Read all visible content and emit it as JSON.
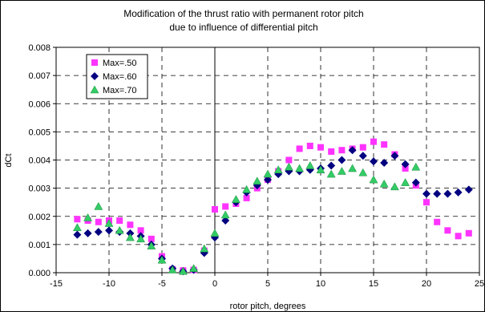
{
  "chart_data": {
    "type": "scatter",
    "title_lines": [
      "Modification of the thrust ratio with permanent rotor pitch",
      "due to influence of differential pitch"
    ],
    "xlabel": "rotor pitch, degrees",
    "ylabel": "dCt",
    "xlim": [
      -15,
      25
    ],
    "ylim": [
      0,
      0.008
    ],
    "x_ticks": [
      -15,
      -10,
      -5,
      0,
      5,
      10,
      15,
      20,
      25
    ],
    "y_ticks": [
      "0.000",
      "0.001",
      "0.002",
      "0.003",
      "0.004",
      "0.005",
      "0.006",
      "0.007",
      "0.008"
    ],
    "grid": "dashed",
    "legend_position": "top-left",
    "series": [
      {
        "name": "Max=.50",
        "marker": "square",
        "color": "#ff33ff",
        "points": [
          [
            -13,
            0.0019
          ],
          [
            -12,
            0.00185
          ],
          [
            -11,
            0.0018
          ],
          [
            -10,
            0.00185
          ],
          [
            -9,
            0.00185
          ],
          [
            -8,
            0.0017
          ],
          [
            -7,
            0.0015
          ],
          [
            -6,
            0.0012
          ],
          [
            -5,
            0.00058
          ],
          [
            -4,
            0.00012
          ],
          [
            -3,
            8e-05
          ],
          [
            -2,
            0.0001
          ],
          [
            -1,
            0.00078
          ],
          [
            0,
            0.00225
          ],
          [
            1,
            0.00235
          ],
          [
            2,
            0.00245
          ],
          [
            3,
            0.00265
          ],
          [
            4,
            0.003
          ],
          [
            5,
            0.0033
          ],
          [
            6,
            0.0036
          ],
          [
            7,
            0.004
          ],
          [
            8,
            0.0044
          ],
          [
            9,
            0.0045
          ],
          [
            10,
            0.00445
          ],
          [
            11,
            0.0043
          ],
          [
            12,
            0.00435
          ],
          [
            13,
            0.0044
          ],
          [
            14,
            0.00445
          ],
          [
            15,
            0.00465
          ],
          [
            16,
            0.00455
          ],
          [
            17,
            0.0042
          ],
          [
            18,
            0.0037
          ],
          [
            19,
            0.0031
          ],
          [
            20,
            0.0025
          ],
          [
            21,
            0.0018
          ],
          [
            22,
            0.0015
          ],
          [
            23,
            0.0013
          ],
          [
            24,
            0.0014
          ]
        ]
      },
      {
        "name": "Max=.60",
        "marker": "diamond",
        "color": "#000080",
        "points": [
          [
            -13,
            0.00135
          ],
          [
            -12,
            0.0014
          ],
          [
            -11,
            0.00145
          ],
          [
            -10,
            0.0015
          ],
          [
            -9,
            0.00145
          ],
          [
            -8,
            0.0014
          ],
          [
            -7,
            0.0013
          ],
          [
            -6,
            0.001
          ],
          [
            -5,
            0.0005
          ],
          [
            -4,
            0.00015
          ],
          [
            -3,
            5e-05
          ],
          [
            -2,
            0.0001
          ],
          [
            -1,
            0.0007
          ],
          [
            0,
            0.00125
          ],
          [
            1,
            0.00185
          ],
          [
            2,
            0.0025
          ],
          [
            3,
            0.00285
          ],
          [
            4,
            0.0031
          ],
          [
            5,
            0.0033
          ],
          [
            6,
            0.0035
          ],
          [
            7,
            0.0036
          ],
          [
            8,
            0.0036
          ],
          [
            9,
            0.00365
          ],
          [
            10,
            0.0037
          ],
          [
            11,
            0.0038
          ],
          [
            12,
            0.004
          ],
          [
            13,
            0.00435
          ],
          [
            14,
            0.00415
          ],
          [
            15,
            0.00395
          ],
          [
            16,
            0.0039
          ],
          [
            17,
            0.00415
          ],
          [
            18,
            0.00385
          ],
          [
            19,
            0.0032
          ],
          [
            20,
            0.0028
          ],
          [
            21,
            0.0028
          ],
          [
            22,
            0.0028
          ],
          [
            23,
            0.00285
          ],
          [
            24,
            0.00295
          ]
        ]
      },
      {
        "name": "Max=.70",
        "marker": "triangle",
        "color": "#33cc66",
        "points": [
          [
            -13,
            0.0016
          ],
          [
            -12,
            0.00195
          ],
          [
            -11,
            0.00235
          ],
          [
            -10,
            0.00175
          ],
          [
            -9,
            0.0015
          ],
          [
            -8,
            0.00125
          ],
          [
            -7,
            0.0012
          ],
          [
            -6,
            0.00095
          ],
          [
            -5,
            0.00045
          ],
          [
            -4,
            0.0001
          ],
          [
            -3,
            5e-05
          ],
          [
            -2,
            0.00015
          ],
          [
            -1,
            0.00085
          ],
          [
            0,
            0.0014
          ],
          [
            1,
            0.00205
          ],
          [
            2,
            0.0026
          ],
          [
            3,
            0.00295
          ],
          [
            4,
            0.00325
          ],
          [
            5,
            0.0035
          ],
          [
            6,
            0.00365
          ],
          [
            7,
            0.00375
          ],
          [
            8,
            0.0037
          ],
          [
            9,
            0.0038
          ],
          [
            10,
            0.00365
          ],
          [
            11,
            0.0035
          ],
          [
            12,
            0.0036
          ],
          [
            13,
            0.0037
          ],
          [
            14,
            0.00355
          ],
          [
            15,
            0.0033
          ],
          [
            16,
            0.00315
          ],
          [
            17,
            0.00305
          ],
          [
            18,
            0.0032
          ],
          [
            19,
            0.00375
          ]
        ]
      }
    ]
  }
}
